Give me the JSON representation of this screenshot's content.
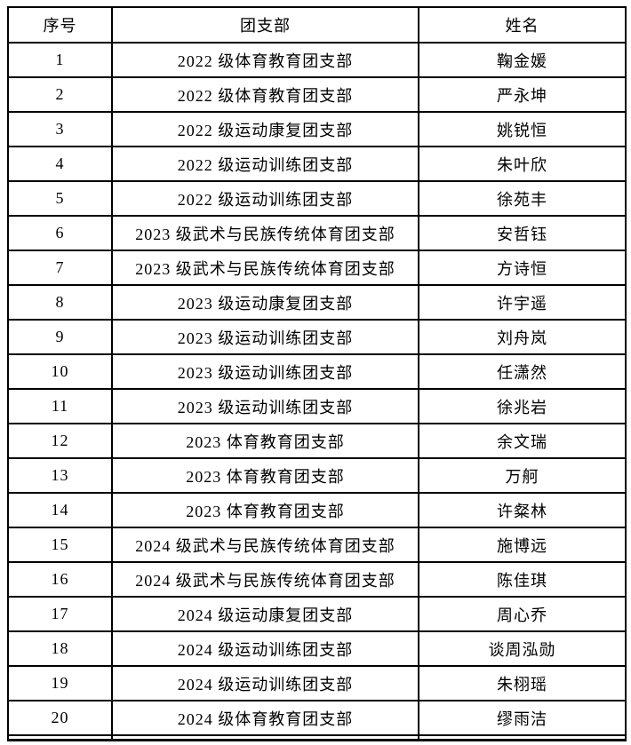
{
  "colors": {
    "background": "#ffffff",
    "border": "#000000",
    "text": "#000000"
  },
  "table": {
    "columns": [
      "序号",
      "团支部",
      "姓名"
    ],
    "rows": [
      {
        "no": "1",
        "branch": "2022 级体育教育团支部",
        "name": "鞠金媛"
      },
      {
        "no": "2",
        "branch": "2022 级体育教育团支部",
        "name": "严永坤"
      },
      {
        "no": "3",
        "branch": "2022 级运动康复团支部",
        "name": "姚锐恒"
      },
      {
        "no": "4",
        "branch": "2022 级运动训练团支部",
        "name": "朱叶欣"
      },
      {
        "no": "5",
        "branch": "2022 级运动训练团支部",
        "name": "徐苑丰"
      },
      {
        "no": "6",
        "branch": "2023 级武术与民族传统体育团支部",
        "name": "安哲钰"
      },
      {
        "no": "7",
        "branch": "2023 级武术与民族传统体育团支部",
        "name": "方诗恒"
      },
      {
        "no": "8",
        "branch": "2023 级运动康复团支部",
        "name": "许宇遥"
      },
      {
        "no": "9",
        "branch": "2023 级运动训练团支部",
        "name": "刘舟岚"
      },
      {
        "no": "10",
        "branch": "2023 级运动训练团支部",
        "name": "任潇然"
      },
      {
        "no": "11",
        "branch": "2023 级运动训练团支部",
        "name": "徐兆岩"
      },
      {
        "no": "12",
        "branch": "2023 体育教育团支部",
        "name": "余文瑞"
      },
      {
        "no": "13",
        "branch": "2023 体育教育团支部",
        "name": "万舸"
      },
      {
        "no": "14",
        "branch": "2023 体育教育团支部",
        "name": "许粲林"
      },
      {
        "no": "15",
        "branch": "2024 级武术与民族传统体育团支部",
        "name": "施博远"
      },
      {
        "no": "16",
        "branch": "2024 级武术与民族传统体育团支部",
        "name": "陈佳琪"
      },
      {
        "no": "17",
        "branch": "2024 级运动康复团支部",
        "name": "周心乔"
      },
      {
        "no": "18",
        "branch": "2024 级运动训练团支部",
        "name": "谈周泓勋"
      },
      {
        "no": "19",
        "branch": "2024 级运动训练团支部",
        "name": "朱栩瑶"
      },
      {
        "no": "20",
        "branch": "2024 级体育教育团支部",
        "name": "缪雨洁"
      }
    ]
  }
}
